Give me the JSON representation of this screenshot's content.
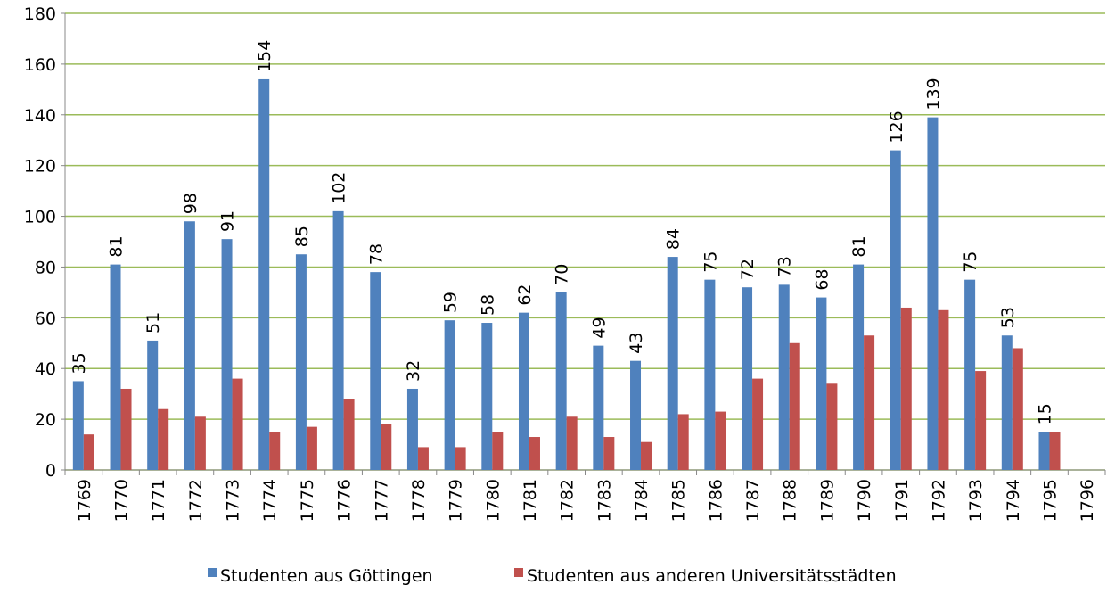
{
  "chart_data": {
    "type": "bar",
    "categories": [
      "1769",
      "1770",
      "1771",
      "1772",
      "1773",
      "1774",
      "1775",
      "1776",
      "1777",
      "1778",
      "1779",
      "1780",
      "1781",
      "1782",
      "1783",
      "1784",
      "1785",
      "1786",
      "1787",
      "1788",
      "1789",
      "1790",
      "1791",
      "1792",
      "1793",
      "1794",
      "1795",
      "1796"
    ],
    "series": [
      {
        "name": "Studenten aus Göttingen",
        "color": "#4f81bd",
        "values": [
          35,
          81,
          51,
          98,
          91,
          154,
          85,
          102,
          78,
          32,
          59,
          58,
          62,
          70,
          49,
          43,
          84,
          75,
          72,
          73,
          68,
          81,
          126,
          139,
          75,
          53,
          15,
          null
        ]
      },
      {
        "name": "Studenten aus anderen Universitätsstädten",
        "color": "#c0504d",
        "values": [
          14,
          32,
          24,
          21,
          36,
          15,
          17,
          28,
          18,
          9,
          9,
          15,
          13,
          21,
          13,
          11,
          22,
          23,
          36,
          50,
          34,
          53,
          64,
          63,
          39,
          48,
          15,
          null
        ]
      }
    ],
    "ylim": [
      0,
      180
    ],
    "yticks": [
      0,
      20,
      40,
      60,
      80,
      100,
      120,
      140,
      160,
      180
    ],
    "grid": true,
    "legend": "bottom"
  }
}
